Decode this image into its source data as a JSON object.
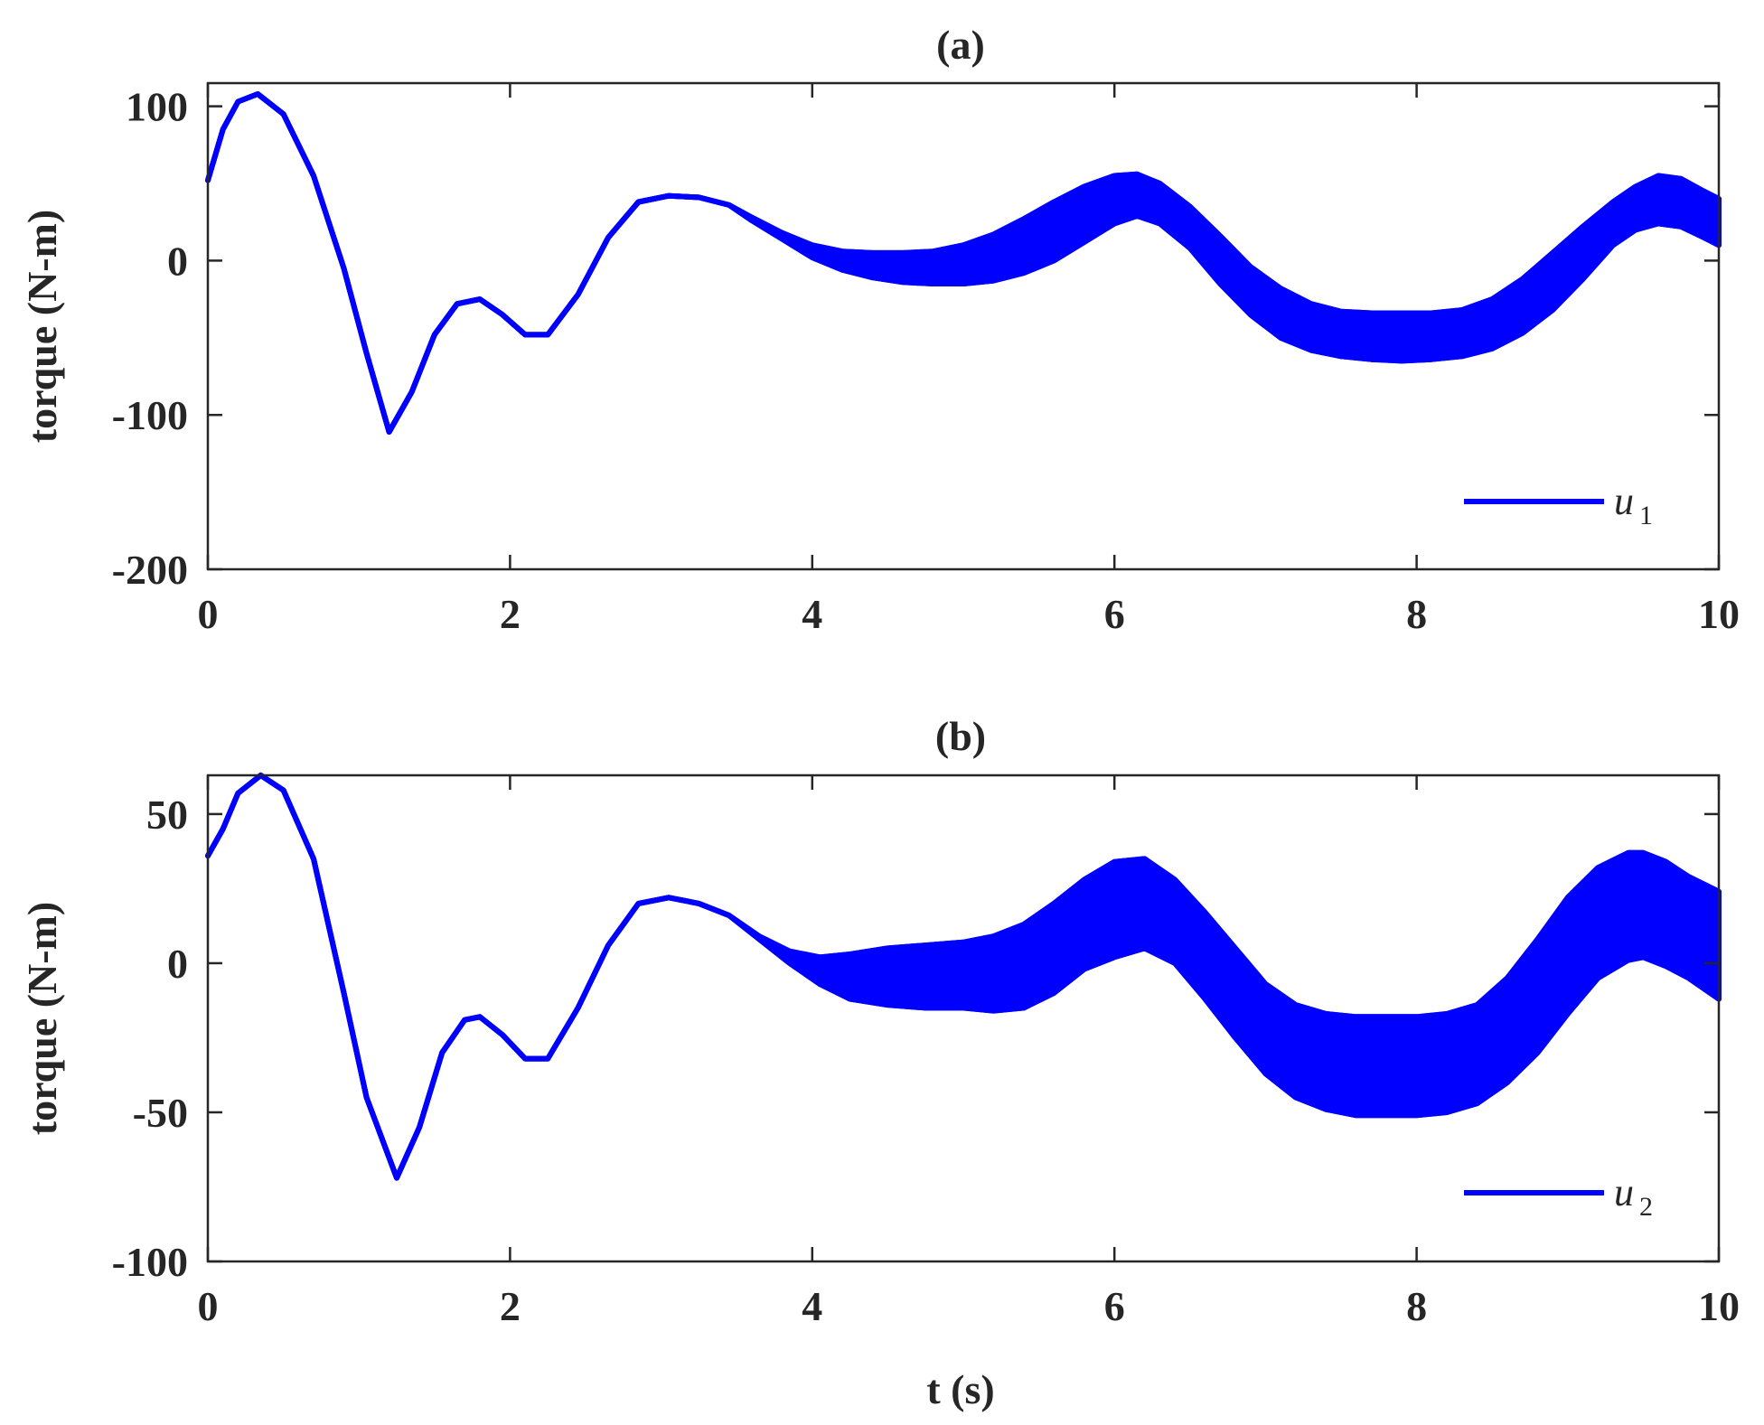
{
  "chart_data": [
    {
      "type": "line",
      "title": "(a)",
      "xlabel": "",
      "ylabel": "torque (N-m)",
      "xlim": [
        0,
        10
      ],
      "ylim": [
        -200,
        115
      ],
      "xticks": [
        0,
        2,
        4,
        6,
        8,
        10
      ],
      "xtick_labels": [
        "0",
        "2",
        "4",
        "6",
        "8",
        "10"
      ],
      "yticks": [
        -200,
        -100,
        0,
        100
      ],
      "ytick_labels": [
        "-200",
        "-100",
        "0",
        "100"
      ],
      "grid": false,
      "legend_position": "bottom-right",
      "color": "#0000FF",
      "series": [
        {
          "name": "u1",
          "legend_main": "u",
          "legend_sub": "1",
          "x": [
            0,
            0.1,
            0.2,
            0.33,
            0.5,
            0.7,
            0.9,
            1.05,
            1.2,
            1.35,
            1.5,
            1.65,
            1.8,
            1.95,
            2.1,
            2.25,
            2.45,
            2.65,
            2.85,
            3.05,
            3.25,
            3.45,
            3.6,
            3.8,
            4.0,
            4.2,
            4.4,
            4.6,
            4.8,
            5.0,
            5.2,
            5.4,
            5.6,
            5.8,
            6.0,
            6.15,
            6.3,
            6.5,
            6.7,
            6.9,
            7.1,
            7.3,
            7.5,
            7.7,
            7.9,
            8.1,
            8.3,
            8.5,
            8.7,
            8.9,
            9.1,
            9.3,
            9.45,
            9.6,
            9.75,
            9.9,
            10.0
          ],
          "upper": [
            52,
            85,
            103,
            108,
            95,
            55,
            -5,
            -60,
            -111,
            -85,
            -48,
            -28,
            -25,
            -35,
            -48,
            -48,
            -22,
            15,
            38,
            42,
            41,
            36,
            28,
            18,
            10,
            6,
            5,
            5,
            6,
            10,
            17,
            27,
            38,
            48,
            55,
            56,
            50,
            35,
            16,
            -4,
            -18,
            -28,
            -33,
            -34,
            -34,
            -34,
            -32,
            -25,
            -12,
            5,
            22,
            38,
            48,
            55,
            53,
            45,
            40
          ],
          "lower": [
            52,
            85,
            103,
            108,
            95,
            55,
            -5,
            -60,
            -111,
            -85,
            -48,
            -28,
            -25,
            -35,
            -48,
            -48,
            -22,
            15,
            38,
            42,
            41,
            36,
            26,
            14,
            2,
            -6,
            -11,
            -14,
            -15,
            -15,
            -13,
            -8,
            0,
            12,
            24,
            29,
            24,
            8,
            -15,
            -35,
            -50,
            -58,
            -62,
            -64,
            -65,
            -64,
            -62,
            -57,
            -47,
            -32,
            -12,
            10,
            20,
            24,
            22,
            15,
            10
          ]
        }
      ]
    },
    {
      "type": "line",
      "title": "(b)",
      "xlabel": "t (s)",
      "ylabel": "torque (N-m)",
      "xlim": [
        0,
        10
      ],
      "ylim": [
        -100,
        63
      ],
      "xticks": [
        0,
        2,
        4,
        6,
        8,
        10
      ],
      "xtick_labels": [
        "0",
        "2",
        "4",
        "6",
        "8",
        "10"
      ],
      "yticks": [
        -100,
        -50,
        0,
        50
      ],
      "ytick_labels": [
        "-100",
        "-50",
        "0",
        "50"
      ],
      "grid": false,
      "legend_position": "bottom-right",
      "color": "#0000FF",
      "series": [
        {
          "name": "u2",
          "legend_main": "u",
          "legend_sub": "2",
          "x": [
            0,
            0.1,
            0.2,
            0.35,
            0.5,
            0.7,
            0.9,
            1.05,
            1.25,
            1.4,
            1.55,
            1.7,
            1.8,
            1.95,
            2.1,
            2.25,
            2.45,
            2.65,
            2.85,
            3.05,
            3.25,
            3.45,
            3.65,
            3.85,
            4.05,
            4.25,
            4.5,
            4.75,
            5.0,
            5.2,
            5.4,
            5.6,
            5.8,
            6.0,
            6.2,
            6.4,
            6.6,
            6.8,
            7.0,
            7.2,
            7.4,
            7.6,
            7.8,
            8.0,
            8.2,
            8.4,
            8.6,
            8.8,
            9.0,
            9.2,
            9.4,
            9.5,
            9.65,
            9.8,
            10.0
          ],
          "upper": [
            36,
            45,
            57,
            63,
            58,
            35,
            -10,
            -45,
            -72,
            -55,
            -30,
            -19,
            -18,
            -24,
            -32,
            -32,
            -15,
            6,
            20,
            22,
            20,
            16,
            9,
            4,
            2,
            3,
            5,
            6,
            7,
            9,
            13,
            20,
            28,
            34,
            35,
            28,
            17,
            5,
            -7,
            -14,
            -17,
            -18,
            -18,
            -18,
            -17,
            -14,
            -5,
            8,
            22,
            32,
            37,
            37,
            34,
            29,
            24
          ],
          "lower": [
            36,
            45,
            57,
            63,
            58,
            35,
            -10,
            -45,
            -72,
            -55,
            -30,
            -19,
            -18,
            -24,
            -32,
            -32,
            -15,
            6,
            20,
            22,
            20,
            16,
            8,
            0,
            -7,
            -12,
            -14,
            -15,
            -15,
            -16,
            -15,
            -10,
            -2,
            2,
            5,
            0,
            -12,
            -25,
            -37,
            -45,
            -49,
            -51,
            -51,
            -51,
            -50,
            -47,
            -40,
            -30,
            -17,
            -5,
            1,
            2,
            -1,
            -5,
            -12
          ]
        }
      ]
    }
  ]
}
